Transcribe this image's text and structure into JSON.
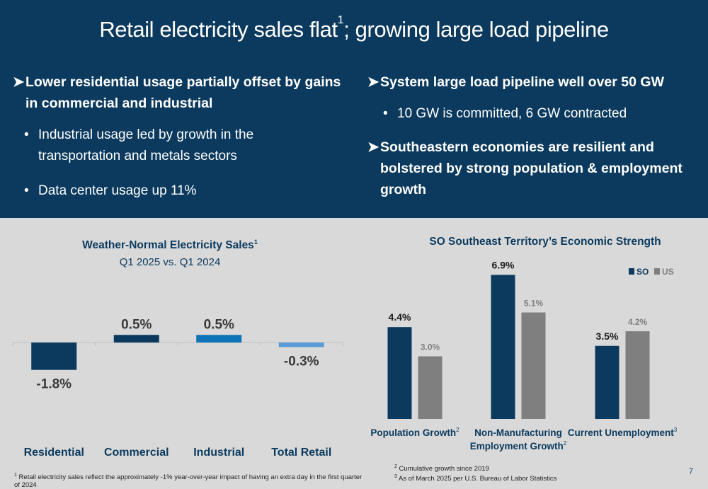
{
  "header": {
    "title_main": "Retail electricity sales flat",
    "title_sup": "1",
    "title_rest": "; growing large load pipeline"
  },
  "left_bullets": {
    "main": "Lower residential usage partially offset by gains in commercial and industrial",
    "subs": [
      "Industrial usage led by growth in the transportation and metals sectors",
      "Data center usage up 11%"
    ]
  },
  "right_bullets": {
    "main1": "System large load pipeline well over 50 GW",
    "sub1": "10 GW is committed, 6 GW contracted",
    "main2": "Southeastern economies are resilient and bolstered by strong population & employment growth"
  },
  "colors": {
    "navy": "#0b3a5e",
    "blue": "#0f74b7",
    "light_blue": "#5b9bd5",
    "gray_bar": "#7f7f7f",
    "background": "#d9d9d9"
  },
  "chart_data": [
    {
      "type": "bar",
      "title": "Weather-Normal Electricity Sales",
      "title_sup": "1",
      "subtitle": "Q1 2025 vs. Q1 2024",
      "categories": [
        "Residential",
        "Commercial",
        "Industrial",
        "Total Retail"
      ],
      "values": [
        -1.8,
        0.5,
        0.5,
        -0.3
      ],
      "data_labels": [
        "-1.8%",
        "0.5%",
        "0.5%",
        "-0.3%"
      ],
      "bar_colors": [
        "#0b3a5e",
        "#0b3a5e",
        "#0f74b7",
        "#5b9bd5"
      ],
      "grid": false,
      "legend": "none"
    },
    {
      "type": "bar",
      "title": "SO Southeast Territory’s Economic Strength",
      "categories": [
        "Population Growth",
        "Non-Manufacturing Employment Growth",
        "Current Unemployment"
      ],
      "category_lines": [
        [
          "Population Growth"
        ],
        [
          "Non-Manufacturing",
          "Employment Growth"
        ],
        [
          "Current Unemployment"
        ]
      ],
      "category_sups": [
        "2",
        "2",
        "3"
      ],
      "series": [
        {
          "name": "SO",
          "values": [
            4.4,
            6.9,
            3.5
          ],
          "labels": [
            "4.4%",
            "6.9%",
            "3.5%"
          ],
          "color": "#0b3a5e"
        },
        {
          "name": "US",
          "values": [
            3.0,
            5.1,
            4.2
          ],
          "labels": [
            "3.0%",
            "5.1%",
            "4.2%"
          ],
          "color": "#7f7f7f"
        }
      ],
      "legend": "top-right",
      "grid": false
    }
  ],
  "footnotes": {
    "left": "Retail electricity sales reflect the approximately -1% year-over-year impact of having an extra day in the first quarter of 2024",
    "left_sup": "1",
    "right1": "Cumulative growth since 2019",
    "right1_sup": "2",
    "right2": "As of March 2025 per U.S. Bureau of Labor Statistics",
    "right2_sup": "3"
  },
  "page_number": "7"
}
